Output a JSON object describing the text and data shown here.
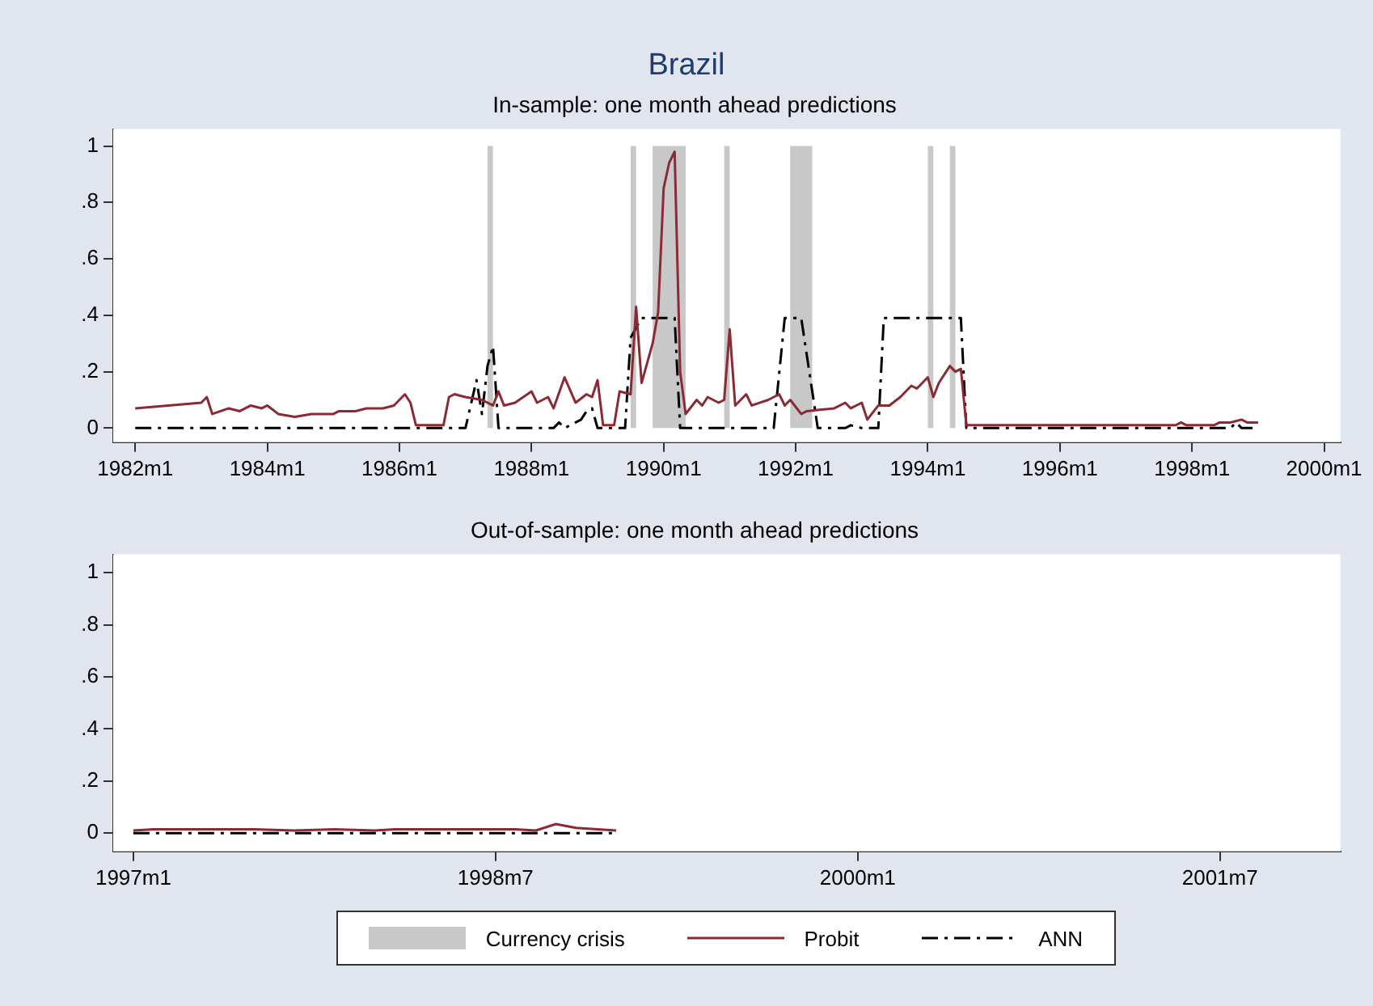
{
  "chart_data": [
    {
      "type": "line",
      "title": "Brazil",
      "subtitle": "In-sample: one month ahead predictions",
      "xlim": [
        "1981-09",
        "2000-04"
      ],
      "ylim": [
        -0.05,
        1.06
      ],
      "xticks": [
        {
          "value": "1982-01",
          "label": "1982m1"
        },
        {
          "value": "1984-01",
          "label": "1984m1"
        },
        {
          "value": "1986-01",
          "label": "1986m1"
        },
        {
          "value": "1988-01",
          "label": "1988m1"
        },
        {
          "value": "1990-01",
          "label": "1990m1"
        },
        {
          "value": "1992-01",
          "label": "1992m1"
        },
        {
          "value": "1994-01",
          "label": "1994m1"
        },
        {
          "value": "1996-01",
          "label": "1996m1"
        },
        {
          "value": "1998-01",
          "label": "1998m1"
        },
        {
          "value": "2000-01",
          "label": "2000m1"
        }
      ],
      "yticks": [
        {
          "value": 0,
          "label": "0"
        },
        {
          "value": 0.2,
          "label": ".2"
        },
        {
          "value": 0.4,
          "label": ".4"
        },
        {
          "value": 0.6,
          "label": ".6"
        },
        {
          "value": 0.8,
          "label": ".8"
        },
        {
          "value": 1,
          "label": "1"
        }
      ],
      "grid": false,
      "legend": "bottom",
      "bands": [
        {
          "axis": "x",
          "from": "1987-05",
          "to": "1987-06",
          "label": "Currency crisis",
          "color": "#c8c8c8"
        },
        {
          "axis": "x",
          "from": "1989-07",
          "to": "1989-08",
          "color": "#c8c8c8"
        },
        {
          "axis": "x",
          "from": "1989-11",
          "to": "1990-05",
          "color": "#c8c8c8"
        },
        {
          "axis": "x",
          "from": "1990-12",
          "to": "1991-01",
          "color": "#c8c8c8"
        },
        {
          "axis": "x",
          "from": "1991-12",
          "to": "1992-04",
          "color": "#c8c8c8"
        },
        {
          "axis": "x",
          "from": "1994-01",
          "to": "1994-02",
          "color": "#c8c8c8"
        },
        {
          "axis": "x",
          "from": "1994-05",
          "to": "1994-06",
          "color": "#c8c8c8"
        }
      ],
      "series": [
        {
          "name": "Probit",
          "color": "#8b2a33",
          "line_style": "solid",
          "x": [
            "1982-01",
            "1983-01",
            "1983-02",
            "1983-03",
            "1983-06",
            "1983-08",
            "1983-10",
            "1983-12",
            "1984-01",
            "1984-03",
            "1984-06",
            "1984-09",
            "1985-01",
            "1985-02",
            "1985-05",
            "1985-07",
            "1985-10",
            "1985-12",
            "1986-02",
            "1986-03",
            "1986-04",
            "1986-09",
            "1986-10",
            "1986-11",
            "1987-01",
            "1987-04",
            "1987-06",
            "1987-07",
            "1987-08",
            "1987-10",
            "1988-01",
            "1988-02",
            "1988-04",
            "1988-05",
            "1988-07",
            "1988-09",
            "1988-11",
            "1988-12",
            "1989-01",
            "1989-02",
            "1989-04",
            "1989-05",
            "1989-07",
            "1989-08",
            "1989-09",
            "1989-11",
            "1989-12",
            "1990-01",
            "1990-02",
            "1990-03",
            "1990-04",
            "1990-05",
            "1990-07",
            "1990-08",
            "1990-09",
            "1990-11",
            "1990-12",
            "1991-01",
            "1991-02",
            "1991-04",
            "1991-05",
            "1991-08",
            "1991-10",
            "1991-11",
            "1991-12",
            "1992-02",
            "1992-03",
            "1992-08",
            "1992-10",
            "1992-11",
            "1993-01",
            "1993-02",
            "1993-04",
            "1993-06",
            "1993-08",
            "1993-10",
            "1993-11",
            "1994-01",
            "1994-02",
            "1994-03",
            "1994-05",
            "1994-06",
            "1994-07",
            "1994-08",
            "1995-07",
            "1996-09",
            "1997-10",
            "1997-11",
            "1997-12",
            "1998-05",
            "1998-06",
            "1998-08",
            "1998-10",
            "1998-11",
            "1999-01"
          ],
          "values": [
            0.07,
            0.09,
            0.11,
            0.05,
            0.07,
            0.06,
            0.08,
            0.07,
            0.08,
            0.05,
            0.04,
            0.05,
            0.05,
            0.06,
            0.06,
            0.07,
            0.07,
            0.08,
            0.12,
            0.09,
            0.01,
            0.01,
            0.11,
            0.12,
            0.11,
            0.1,
            0.08,
            0.13,
            0.08,
            0.09,
            0.13,
            0.09,
            0.11,
            0.07,
            0.18,
            0.09,
            0.12,
            0.11,
            0.17,
            0.01,
            0.01,
            0.13,
            0.12,
            0.43,
            0.16,
            0.3,
            0.41,
            0.85,
            0.94,
            0.98,
            0.2,
            0.05,
            0.1,
            0.08,
            0.11,
            0.09,
            0.1,
            0.35,
            0.08,
            0.12,
            0.08,
            0.1,
            0.12,
            0.08,
            0.1,
            0.05,
            0.06,
            0.07,
            0.09,
            0.07,
            0.09,
            0.03,
            0.08,
            0.08,
            0.11,
            0.15,
            0.14,
            0.18,
            0.11,
            0.16,
            0.22,
            0.2,
            0.21,
            0.01,
            0.01,
            0.01,
            0.01,
            0.02,
            0.01,
            0.01,
            0.02,
            0.02,
            0.03,
            0.02,
            0.02
          ]
        },
        {
          "name": "ANN",
          "color": "#000000",
          "line_style": "dashed",
          "x": [
            "1982-01",
            "1987-01",
            "1987-03",
            "1987-04",
            "1987-05",
            "1987-06",
            "1987-07",
            "1988-05",
            "1988-06",
            "1988-07",
            "1988-10",
            "1988-11",
            "1988-12",
            "1989-01",
            "1989-06",
            "1989-07",
            "1989-09",
            "1990-03",
            "1990-04",
            "1991-09",
            "1991-11",
            "1992-02",
            "1992-05",
            "1992-10",
            "1992-11",
            "1993-01",
            "1993-04",
            "1993-05",
            "1994-07",
            "1994-08",
            "1998-08",
            "1998-09",
            "1998-10",
            "1998-12"
          ],
          "values": [
            0,
            0,
            0.17,
            0.05,
            0.22,
            0.29,
            0,
            0,
            0.02,
            0,
            0.03,
            0.06,
            0.07,
            0,
            0,
            0.32,
            0.39,
            0.39,
            0,
            0,
            0.39,
            0.39,
            0,
            0,
            0.01,
            0,
            0,
            0.39,
            0.39,
            0,
            0,
            0.02,
            0,
            0
          ]
        }
      ]
    },
    {
      "type": "line",
      "title": "Out-of-sample: one month ahead predictions",
      "xlim": [
        "1996-12",
        "2002-01"
      ],
      "ylim": [
        -0.07,
        1.07
      ],
      "xticks": [
        {
          "value": "1997-01",
          "label": "1997m1"
        },
        {
          "value": "1998-07",
          "label": "1998m7"
        },
        {
          "value": "2000-01",
          "label": "2000m1"
        },
        {
          "value": "2001-07",
          "label": "2001m7"
        }
      ],
      "yticks": [
        {
          "value": 0,
          "label": "0"
        },
        {
          "value": 0.2,
          "label": ".2"
        },
        {
          "value": 0.4,
          "label": ".4"
        },
        {
          "value": 0.6,
          "label": ".6"
        },
        {
          "value": 0.8,
          "label": ".8"
        },
        {
          "value": 1,
          "label": "1"
        }
      ],
      "grid": false,
      "series": [
        {
          "color": "#8b2a33",
          "line_style": "solid",
          "x": [
            "1997-01",
            "1997-02",
            "1997-07",
            "1997-09",
            "1997-11",
            "1998-01",
            "1998-02",
            "1998-08",
            "1998-09",
            "1998-10",
            "1998-11",
            "1999-01"
          ],
          "values": [
            0.01,
            0.015,
            0.015,
            0.01,
            0.015,
            0.01,
            0.015,
            0.015,
            0.01,
            0.035,
            0.02,
            0.01
          ]
        },
        {
          "color": "#000000",
          "line_style": "dashed",
          "x": [
            "1997-01",
            "1999-01"
          ],
          "values": [
            0,
            0
          ]
        }
      ]
    }
  ]
}
